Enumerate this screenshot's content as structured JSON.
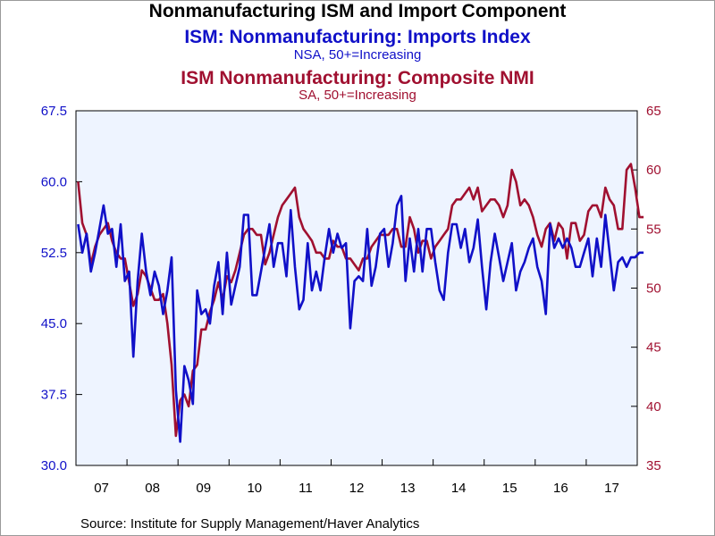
{
  "title": "Nonmanufacturing ISM and Import Component",
  "series_titles": [
    {
      "title": "ISM: Nonmanufacturing: Imports Index",
      "subtitle": "NSA, 50+=Increasing",
      "color": "#1010c8"
    },
    {
      "title": "ISM Nonmanufacturing: Composite NMI",
      "subtitle": "SA, 50+=Increasing",
      "color": "#a01030"
    }
  ],
  "source": "Source:  Institute for Supply Management/Haver Analytics",
  "chart_data": {
    "type": "line",
    "background": "#eef4ff",
    "x_labels": [
      "07",
      "08",
      "09",
      "10",
      "11",
      "12",
      "13",
      "14",
      "15",
      "16",
      "17"
    ],
    "x_range": [
      "2007-01",
      "2017-12"
    ],
    "left_axis": {
      "min": 30,
      "max": 67.5,
      "ticks": [
        "30.0",
        "37.5",
        "45.0",
        "52.5",
        "60.0",
        "67.5"
      ],
      "color": "#1010c8"
    },
    "right_axis": {
      "min": 35,
      "max": 65,
      "ticks": [
        "35",
        "40",
        "45",
        "50",
        "55",
        "60",
        "65"
      ],
      "color": "#a01030"
    },
    "series": [
      {
        "name": "ISM: Nonmanufacturing: Imports Index",
        "axis": "left",
        "color": "#1010c8",
        "start": "2007-01",
        "values": [
          55.5,
          52.5,
          54.5,
          50.5,
          52.5,
          55.0,
          57.5,
          54.5,
          55.0,
          51.0,
          55.5,
          49.5,
          50.5,
          41.5,
          49.5,
          54.5,
          50.5,
          48.0,
          50.5,
          49.0,
          46.0,
          48.5,
          52.0,
          38.0,
          32.5,
          40.5,
          39.0,
          36.5,
          48.5,
          46.0,
          46.5,
          45.0,
          49.0,
          51.5,
          46.0,
          52.5,
          47.0,
          49.0,
          51.0,
          56.5,
          56.5,
          48.0,
          48.0,
          50.5,
          53.0,
          55.5,
          51.0,
          53.5,
          53.5,
          50.0,
          57.0,
          51.0,
          46.5,
          47.5,
          53.5,
          48.5,
          50.5,
          48.5,
          52.0,
          55.0,
          52.5,
          54.5,
          53.0,
          53.5,
          44.5,
          49.5,
          50.0,
          49.5,
          55.0,
          49.0,
          51.0,
          54.5,
          55.0,
          51.0,
          53.5,
          57.5,
          58.5,
          49.5,
          54.0,
          50.5,
          55.0,
          50.5,
          55.0,
          55.0,
          51.5,
          48.5,
          47.5,
          52.5,
          55.5,
          55.5,
          53.0,
          55.0,
          51.5,
          53.0,
          56.0,
          51.0,
          46.5,
          51.5,
          54.5,
          52.0,
          49.5,
          51.5,
          53.5,
          48.5,
          50.5,
          51.5,
          53.0,
          54.0,
          51.0,
          49.5,
          46.0,
          55.5,
          53.0,
          54.0,
          53.0,
          54.0,
          53.0,
          51.0,
          51.0,
          52.5,
          54.0,
          50.0,
          54.0,
          51.0,
          56.5,
          52.5,
          48.5,
          51.5,
          52.0,
          51.0,
          52.0,
          52.0,
          52.5,
          52.5
        ]
      },
      {
        "name": "ISM Nonmanufacturing: Composite NMI",
        "axis": "right",
        "color": "#a01030",
        "start": "2007-01",
        "values": [
          59.0,
          55.5,
          54.5,
          52.0,
          53.5,
          54.5,
          55.0,
          55.5,
          54.0,
          53.0,
          52.5,
          52.5,
          50.5,
          48.5,
          49.5,
          51.5,
          51.0,
          50.0,
          49.0,
          49.0,
          49.5,
          47.0,
          43.5,
          37.5,
          40.5,
          41.0,
          40.0,
          43.0,
          43.5,
          46.5,
          46.5,
          48.0,
          49.0,
          50.5,
          49.0,
          51.0,
          50.5,
          51.5,
          53.0,
          54.5,
          55.0,
          55.0,
          54.5,
          54.5,
          52.0,
          53.0,
          54.5,
          56.0,
          57.0,
          57.5,
          58.0,
          58.5,
          56.0,
          55.0,
          54.5,
          54.0,
          53.0,
          53.0,
          52.5,
          52.5,
          54.0,
          53.5,
          53.5,
          52.5,
          52.5,
          52.0,
          51.5,
          52.5,
          52.5,
          53.5,
          54.0,
          54.5,
          54.5,
          54.5,
          55.0,
          55.0,
          53.5,
          53.5,
          56.0,
          55.0,
          53.0,
          54.0,
          54.0,
          52.5,
          53.5,
          54.0,
          54.5,
          55.0,
          57.0,
          57.5,
          57.5,
          58.0,
          58.5,
          57.5,
          58.5,
          56.5,
          57.0,
          57.5,
          57.5,
          57.0,
          56.0,
          57.0,
          60.0,
          59.0,
          57.0,
          57.5,
          57.0,
          56.0,
          54.5,
          53.5,
          55.0,
          55.5,
          54.0,
          55.5,
          55.0,
          52.5,
          55.5,
          55.5,
          54.0,
          54.5,
          56.5,
          57.0,
          57.0,
          56.0,
          58.5,
          57.5,
          57.0,
          55.0,
          55.0,
          60.0,
          60.5,
          58.5,
          56.0,
          56.0
        ]
      }
    ]
  }
}
